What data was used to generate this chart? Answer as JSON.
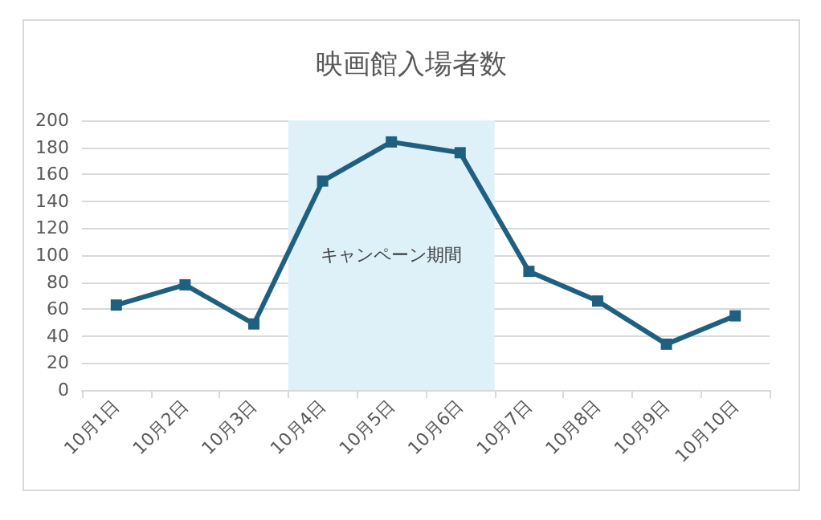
{
  "chart_data": {
    "type": "line",
    "title": "映画館入場者数",
    "categories": [
      "10月1日",
      "10月2日",
      "10月3日",
      "10月4日",
      "10月5日",
      "10月6日",
      "10月7日",
      "10月8日",
      "10月9日",
      "10月10日"
    ],
    "series": [
      {
        "color": "#1f5f80",
        "values": [
          63,
          78,
          49,
          155,
          184,
          176,
          88,
          66,
          34,
          55
        ]
      }
    ],
    "ylim": [
      0,
      200
    ],
    "yticks": [
      0,
      20,
      40,
      60,
      80,
      100,
      120,
      140,
      160,
      180,
      200
    ],
    "grid": "y",
    "marker": "square",
    "line_style": "solid",
    "bands": [
      {
        "axis": "x",
        "from": "10月4日",
        "to": "10月6日",
        "label": "キャンペーン期間",
        "color": "#def1f9"
      }
    ]
  }
}
